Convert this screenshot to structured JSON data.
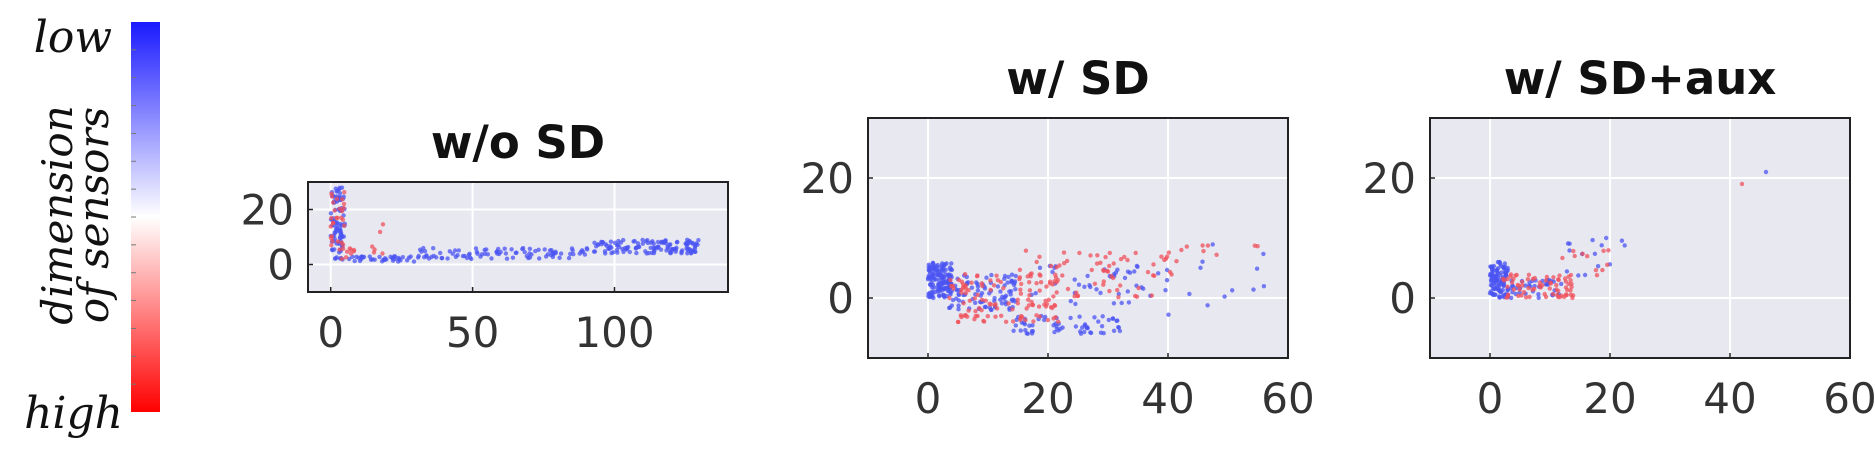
{
  "colorbar": {
    "label_line1": "dimension",
    "label_line2": "of sensors",
    "top_label": "low",
    "bottom_label": "high",
    "colors": {
      "low": "#1a1aff",
      "mid": "#ffffff",
      "high": "#ff0000"
    }
  },
  "theme": {
    "panel_bg": "#e8e8f1",
    "grid": "#ffffff",
    "frame": "#222222",
    "blue": "#4b54f2",
    "red": "#f0505a"
  },
  "chart_data": [
    {
      "type": "scatter",
      "title": "w/o SD",
      "xlim": [
        -8,
        140
      ],
      "ylim": [
        -10,
        30
      ],
      "xticks": [
        0,
        50,
        100
      ],
      "yticks": [
        0,
        20
      ],
      "grid": true,
      "series": [
        {
          "color": "blue",
          "cluster": [
            {
              "x": [
                0,
                5
              ],
              "y": [
                2,
                28
              ],
              "n": 90
            },
            {
              "x": [
                3,
                30
              ],
              "y": [
                1,
                3
              ],
              "n": 40
            },
            {
              "x": [
                30,
                90
              ],
              "y": [
                2,
                6
              ],
              "n": 90
            },
            {
              "x": [
                90,
                130
              ],
              "y": [
                4,
                9
              ],
              "n": 130
            }
          ]
        },
        {
          "color": "red",
          "cluster": [
            {
              "x": [
                0,
                8
              ],
              "y": [
                1,
                28
              ],
              "n": 35
            },
            {
              "x": [
                8,
                22
              ],
              "y": [
                4,
                16
              ],
              "n": 8
            }
          ]
        }
      ]
    },
    {
      "type": "scatter",
      "title": "w/ SD",
      "xlim": [
        -10,
        60
      ],
      "ylim": [
        -10,
        30
      ],
      "xticks": [
        0,
        20,
        40,
        60
      ],
      "yticks": [
        0,
        20
      ],
      "grid": true,
      "series": [
        {
          "color": "blue",
          "cluster": [
            {
              "x": [
                0,
                4
              ],
              "y": [
                0,
                6
              ],
              "n": 140
            },
            {
              "x": [
                3,
                15
              ],
              "y": [
                -2,
                4
              ],
              "n": 90
            },
            {
              "x": [
                14,
                32
              ],
              "y": [
                -6,
                -3
              ],
              "n": 60
            },
            {
              "x": [
                10,
                40
              ],
              "y": [
                -1,
                6
              ],
              "n": 50
            },
            {
              "x": [
                40,
                60
              ],
              "y": [
                -3,
                10
              ],
              "n": 12
            }
          ]
        },
        {
          "color": "red",
          "cluster": [
            {
              "x": [
                3,
                22
              ],
              "y": [
                -4,
                4
              ],
              "n": 110
            },
            {
              "x": [
                15,
                42
              ],
              "y": [
                0,
                8
              ],
              "n": 70
            },
            {
              "x": [
                42,
                56
              ],
              "y": [
                7,
                9
              ],
              "n": 8
            }
          ]
        }
      ]
    },
    {
      "type": "scatter",
      "title": "w/ SD+aux",
      "xlim": [
        -10,
        60
      ],
      "ylim": [
        -10,
        30
      ],
      "xticks": [
        0,
        20,
        40,
        60
      ],
      "yticks": [
        0,
        20
      ],
      "grid": true,
      "series": [
        {
          "color": "blue",
          "cluster": [
            {
              "x": [
                0,
                3
              ],
              "y": [
                0,
                6
              ],
              "n": 110
            },
            {
              "x": [
                3,
                12
              ],
              "y": [
                0,
                3
              ],
              "n": 40
            },
            {
              "x": [
                12,
                23
              ],
              "y": [
                3,
                10
              ],
              "n": 15
            },
            {
              "x": [
                46,
                46
              ],
              "y": [
                21,
                21
              ],
              "n": 1
            }
          ]
        },
        {
          "color": "red",
          "cluster": [
            {
              "x": [
                2,
                14
              ],
              "y": [
                0,
                4
              ],
              "n": 70
            },
            {
              "x": [
                12,
                20
              ],
              "y": [
                3,
                8
              ],
              "n": 12
            },
            {
              "x": [
                42,
                42
              ],
              "y": [
                19,
                19
              ],
              "n": 1
            }
          ]
        }
      ]
    }
  ]
}
